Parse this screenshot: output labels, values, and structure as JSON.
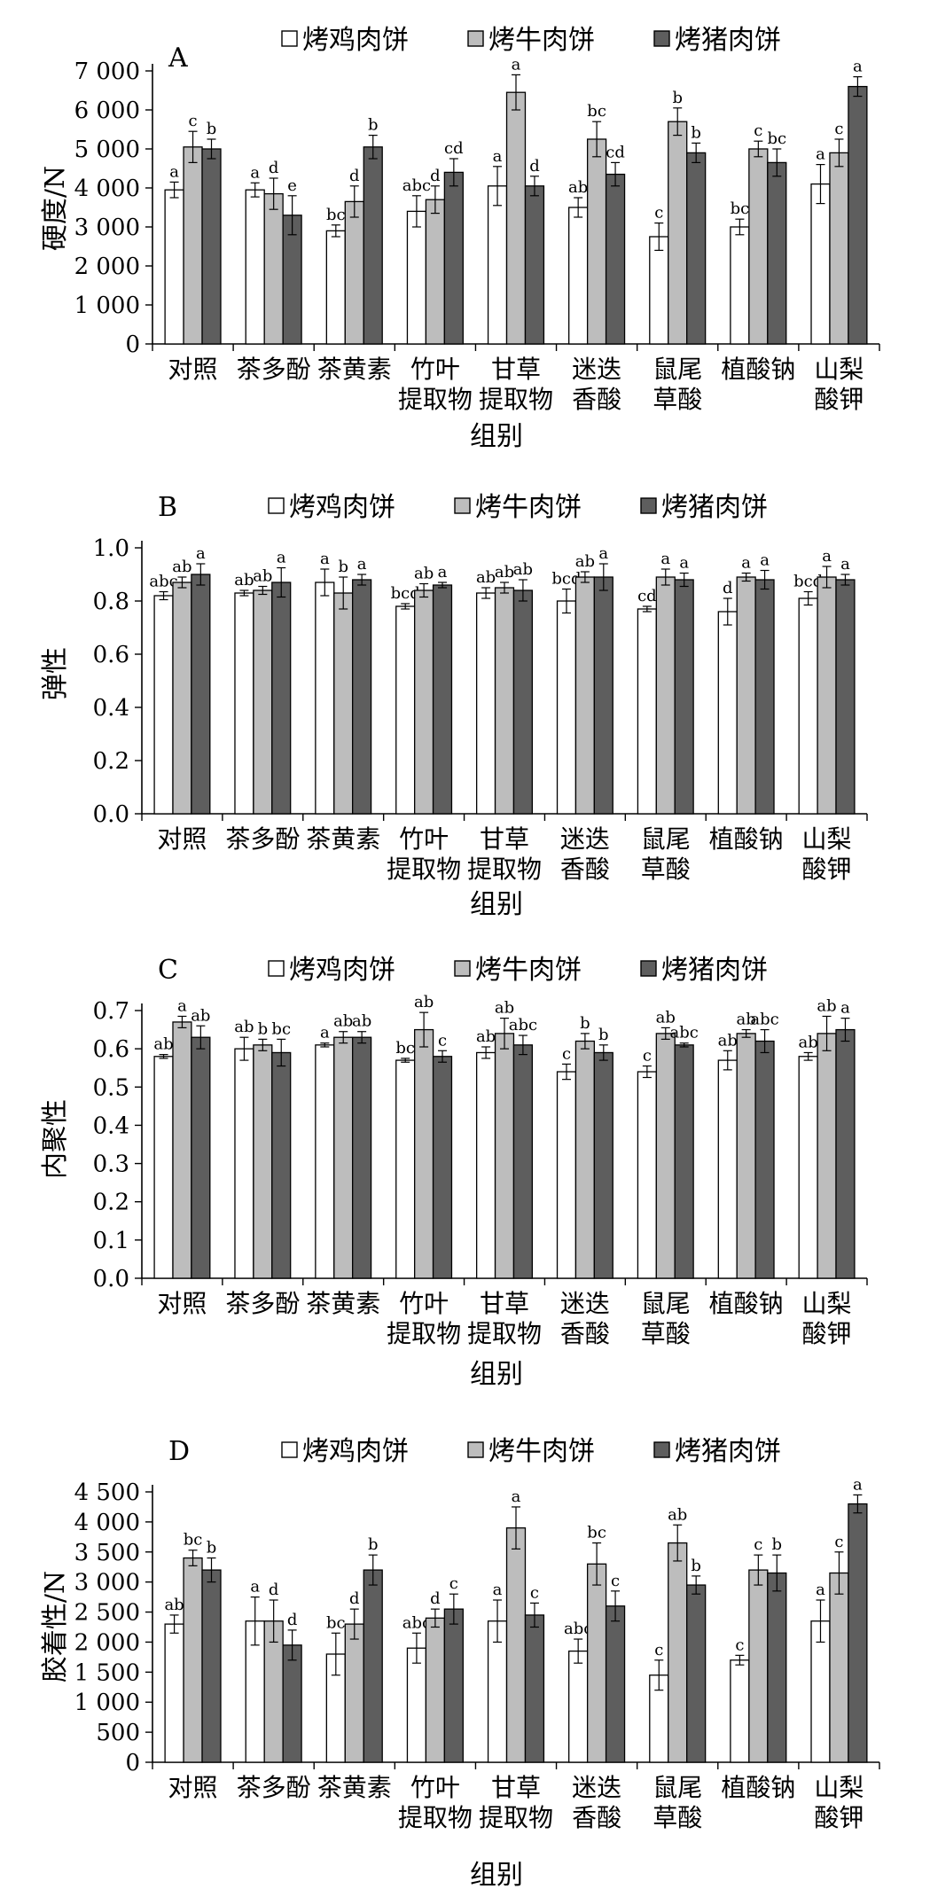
{
  "series": [
    {
      "name": "烤鸡肉饼",
      "color": "#ffffff"
    },
    {
      "name": "烤牛肉饼",
      "color": "#bdbdbd"
    },
    {
      "name": "烤猪肉饼",
      "color": "#5e5e5e"
    }
  ],
  "chart_data": [
    {
      "panel": "A",
      "type": "bar",
      "ylabel": "硬度/N",
      "xlabel": "组别",
      "categories": [
        [
          "对照"
        ],
        [
          "茶多酚"
        ],
        [
          "茶黄素"
        ],
        [
          "竹叶",
          "提取物"
        ],
        [
          "甘草",
          "提取物"
        ],
        [
          "迷迭",
          "香酸"
        ],
        [
          "鼠尾",
          "草酸"
        ],
        [
          "植酸钠"
        ],
        [
          "山梨",
          "酸钾"
        ]
      ],
      "ylim": [
        0,
        7000
      ],
      "yticks": [
        0,
        1000,
        2000,
        3000,
        4000,
        5000,
        6000,
        7000
      ],
      "ytick_labels": [
        "0",
        "1 000",
        "2 000",
        "3 000",
        "4 000",
        "5 000",
        "6 000",
        "7 000"
      ],
      "series": [
        {
          "name": "烤鸡肉饼",
          "values": [
            3950,
            3950,
            2900,
            3400,
            4050,
            3500,
            2750,
            3000,
            4100
          ],
          "errors": [
            200,
            180,
            150,
            400,
            500,
            250,
            350,
            200,
            500
          ],
          "labels": [
            "a",
            "a",
            "bc",
            "abc",
            "a",
            "ab",
            "c",
            "bc",
            "a"
          ]
        },
        {
          "name": "烤牛肉饼",
          "values": [
            5050,
            3850,
            3650,
            3700,
            6450,
            5250,
            5700,
            5000,
            4900
          ],
          "errors": [
            400,
            400,
            400,
            350,
            450,
            450,
            350,
            200,
            350
          ],
          "labels": [
            "c",
            "d",
            "d",
            "d",
            "a",
            "bc",
            "b",
            "c",
            "c"
          ]
        },
        {
          "name": "烤猪肉饼",
          "values": [
            5000,
            3300,
            5050,
            4400,
            4050,
            4350,
            4900,
            4650,
            6600
          ],
          "errors": [
            250,
            500,
            300,
            350,
            250,
            300,
            250,
            350,
            250
          ],
          "labels": [
            "b",
            "e",
            "b",
            "cd",
            "d",
            "cd",
            "b",
            "bc",
            "a"
          ]
        }
      ]
    },
    {
      "panel": "B",
      "type": "bar",
      "ylabel": "弹性",
      "xlabel": "组别",
      "categories": [
        [
          "对照"
        ],
        [
          "茶多酚"
        ],
        [
          "茶黄素"
        ],
        [
          "竹叶",
          "提取物"
        ],
        [
          "甘草",
          "提取物"
        ],
        [
          "迷迭",
          "香酸"
        ],
        [
          "鼠尾",
          "草酸"
        ],
        [
          "植酸钠"
        ],
        [
          "山梨",
          "酸钾"
        ]
      ],
      "ylim": [
        0,
        1.0
      ],
      "yticks": [
        0,
        0.2,
        0.4,
        0.6,
        0.8,
        1.0
      ],
      "ytick_labels": [
        "0.0",
        "0.2",
        "0.4",
        "0.6",
        "0.8",
        "1.0"
      ],
      "series": [
        {
          "name": "烤鸡肉饼",
          "values": [
            0.82,
            0.83,
            0.87,
            0.78,
            0.83,
            0.8,
            0.77,
            0.76,
            0.81
          ],
          "errors": [
            0.015,
            0.01,
            0.05,
            0.01,
            0.02,
            0.045,
            0.01,
            0.05,
            0.025
          ],
          "labels": [
            "abc",
            "ab",
            "a",
            "bcd",
            "ab",
            "bcd",
            "cd",
            "d",
            "bcd"
          ]
        },
        {
          "name": "烤牛肉饼",
          "values": [
            0.87,
            0.84,
            0.83,
            0.84,
            0.85,
            0.89,
            0.89,
            0.89,
            0.89
          ],
          "errors": [
            0.02,
            0.015,
            0.06,
            0.025,
            0.02,
            0.02,
            0.03,
            0.015,
            0.04
          ],
          "labels": [
            "ab",
            "ab",
            "b",
            "ab",
            "ab",
            "ab",
            "a",
            "a",
            "a"
          ]
        },
        {
          "name": "烤猪肉饼",
          "values": [
            0.9,
            0.87,
            0.88,
            0.86,
            0.84,
            0.89,
            0.88,
            0.88,
            0.88
          ],
          "errors": [
            0.04,
            0.055,
            0.02,
            0.01,
            0.04,
            0.05,
            0.025,
            0.035,
            0.02
          ],
          "labels": [
            "a",
            "a",
            "a",
            "a",
            "ab",
            "a",
            "a",
            "a",
            "a"
          ]
        }
      ]
    },
    {
      "panel": "C",
      "type": "bar",
      "ylabel": "内聚性",
      "xlabel": "组别",
      "categories": [
        [
          "对照"
        ],
        [
          "茶多酚"
        ],
        [
          "茶黄素"
        ],
        [
          "竹叶",
          "提取物"
        ],
        [
          "甘草",
          "提取物"
        ],
        [
          "迷迭",
          "香酸"
        ],
        [
          "鼠尾",
          "草酸"
        ],
        [
          "植酸钠"
        ],
        [
          "山梨",
          "酸钾"
        ]
      ],
      "ylim": [
        0,
        0.7
      ],
      "yticks": [
        0,
        0.1,
        0.2,
        0.3,
        0.4,
        0.5,
        0.6,
        0.7
      ],
      "ytick_labels": [
        "0.0",
        "0.1",
        "0.2",
        "0.3",
        "0.4",
        "0.5",
        "0.6",
        "0.7"
      ],
      "series": [
        {
          "name": "烤鸡肉饼",
          "values": [
            0.58,
            0.6,
            0.61,
            0.57,
            0.59,
            0.54,
            0.54,
            0.57,
            0.58
          ],
          "errors": [
            0.005,
            0.03,
            0.005,
            0.005,
            0.015,
            0.02,
            0.015,
            0.025,
            0.01
          ],
          "labels": [
            "ab",
            "ab",
            "a",
            "bc",
            "ab",
            "c",
            "c",
            "ab",
            "ab"
          ]
        },
        {
          "name": "烤牛肉饼",
          "values": [
            0.67,
            0.61,
            0.63,
            0.65,
            0.64,
            0.62,
            0.64,
            0.64,
            0.64
          ],
          "errors": [
            0.015,
            0.015,
            0.015,
            0.045,
            0.04,
            0.02,
            0.015,
            0.01,
            0.045
          ],
          "labels": [
            "a",
            "b",
            "ab",
            "ab",
            "ab",
            "b",
            "ab",
            "ab",
            "ab"
          ]
        },
        {
          "name": "烤猪肉饼",
          "values": [
            0.63,
            0.59,
            0.63,
            0.58,
            0.61,
            0.59,
            0.61,
            0.62,
            0.65
          ],
          "errors": [
            0.03,
            0.035,
            0.015,
            0.015,
            0.025,
            0.02,
            0.005,
            0.03,
            0.03
          ],
          "labels": [
            "ab",
            "bc",
            "ab",
            "c",
            "abc",
            "b",
            "abc",
            "abc",
            "a"
          ]
        }
      ]
    },
    {
      "panel": "D",
      "type": "bar",
      "ylabel": "胶着性/N",
      "xlabel": "组别",
      "categories": [
        [
          "对照"
        ],
        [
          "茶多酚"
        ],
        [
          "茶黄素"
        ],
        [
          "竹叶",
          "提取物"
        ],
        [
          "甘草",
          "提取物"
        ],
        [
          "迷迭",
          "香酸"
        ],
        [
          "鼠尾",
          "草酸"
        ],
        [
          "植酸钠"
        ],
        [
          "山梨",
          "酸钾"
        ]
      ],
      "ylim": [
        0,
        4500
      ],
      "yticks": [
        0,
        500,
        1000,
        1500,
        2000,
        2500,
        3000,
        3500,
        4000,
        4500
      ],
      "ytick_labels": [
        "0",
        "500",
        "1 000",
        "1 500",
        "2 000",
        "2 500",
        "3 000",
        "3 500",
        "4 000",
        "4 500"
      ],
      "series": [
        {
          "name": "烤鸡肉饼",
          "values": [
            2300,
            2350,
            1800,
            1900,
            2350,
            1850,
            1450,
            1700,
            2350
          ],
          "errors": [
            150,
            400,
            350,
            250,
            350,
            200,
            250,
            80,
            350
          ],
          "labels": [
            "ab",
            "a",
            "bc",
            "abc",
            "a",
            "abc",
            "c",
            "c",
            "a"
          ]
        },
        {
          "name": "烤牛肉饼",
          "values": [
            3400,
            2350,
            2300,
            2400,
            3900,
            3300,
            3650,
            3200,
            3150
          ],
          "errors": [
            130,
            350,
            250,
            150,
            350,
            350,
            300,
            250,
            350
          ],
          "labels": [
            "bc",
            "d",
            "d",
            "d",
            "a",
            "bc",
            "ab",
            "c",
            "c"
          ]
        },
        {
          "name": "烤猪肉饼",
          "values": [
            3200,
            1950,
            3200,
            2550,
            2450,
            2600,
            2950,
            3150,
            4300
          ],
          "errors": [
            200,
            250,
            250,
            250,
            200,
            250,
            150,
            300,
            150
          ],
          "labels": [
            "b",
            "d",
            "b",
            "c",
            "c",
            "c",
            "b",
            "b",
            "a"
          ]
        }
      ]
    }
  ]
}
